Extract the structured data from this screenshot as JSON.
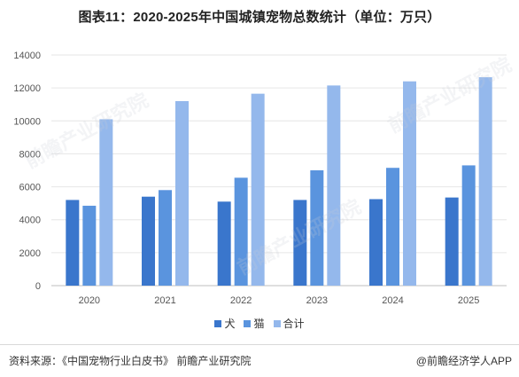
{
  "title": "图表11：2020-2025年中国城镇宠物总数统计（单位：万只）",
  "footer": {
    "source": "资料来源：《中国宠物行业白皮书》 前瞻产业研究院",
    "credit": "@前瞻经济学人APP"
  },
  "watermark": "前瞻产业研究院",
  "chart_data": {
    "type": "bar",
    "categories": [
      "2020",
      "2021",
      "2022",
      "2023",
      "2024",
      "2025"
    ],
    "series": [
      {
        "name": "犬",
        "color": "#3a76cc",
        "values": [
          5200,
          5400,
          5100,
          5200,
          5250,
          5350
        ]
      },
      {
        "name": "猫",
        "color": "#5a94de",
        "values": [
          4850,
          5800,
          6550,
          7000,
          7150,
          7300
        ]
      },
      {
        "name": "合计",
        "color": "#94b8ec",
        "values": [
          10100,
          11200,
          11650,
          12150,
          12400,
          12650
        ]
      }
    ],
    "ylim": [
      0,
      14000
    ],
    "yticks": [
      "0",
      "2000",
      "4000",
      "6000",
      "8000",
      "10000",
      "12000",
      "14000"
    ],
    "grid": true,
    "legend_position": "bottom"
  }
}
